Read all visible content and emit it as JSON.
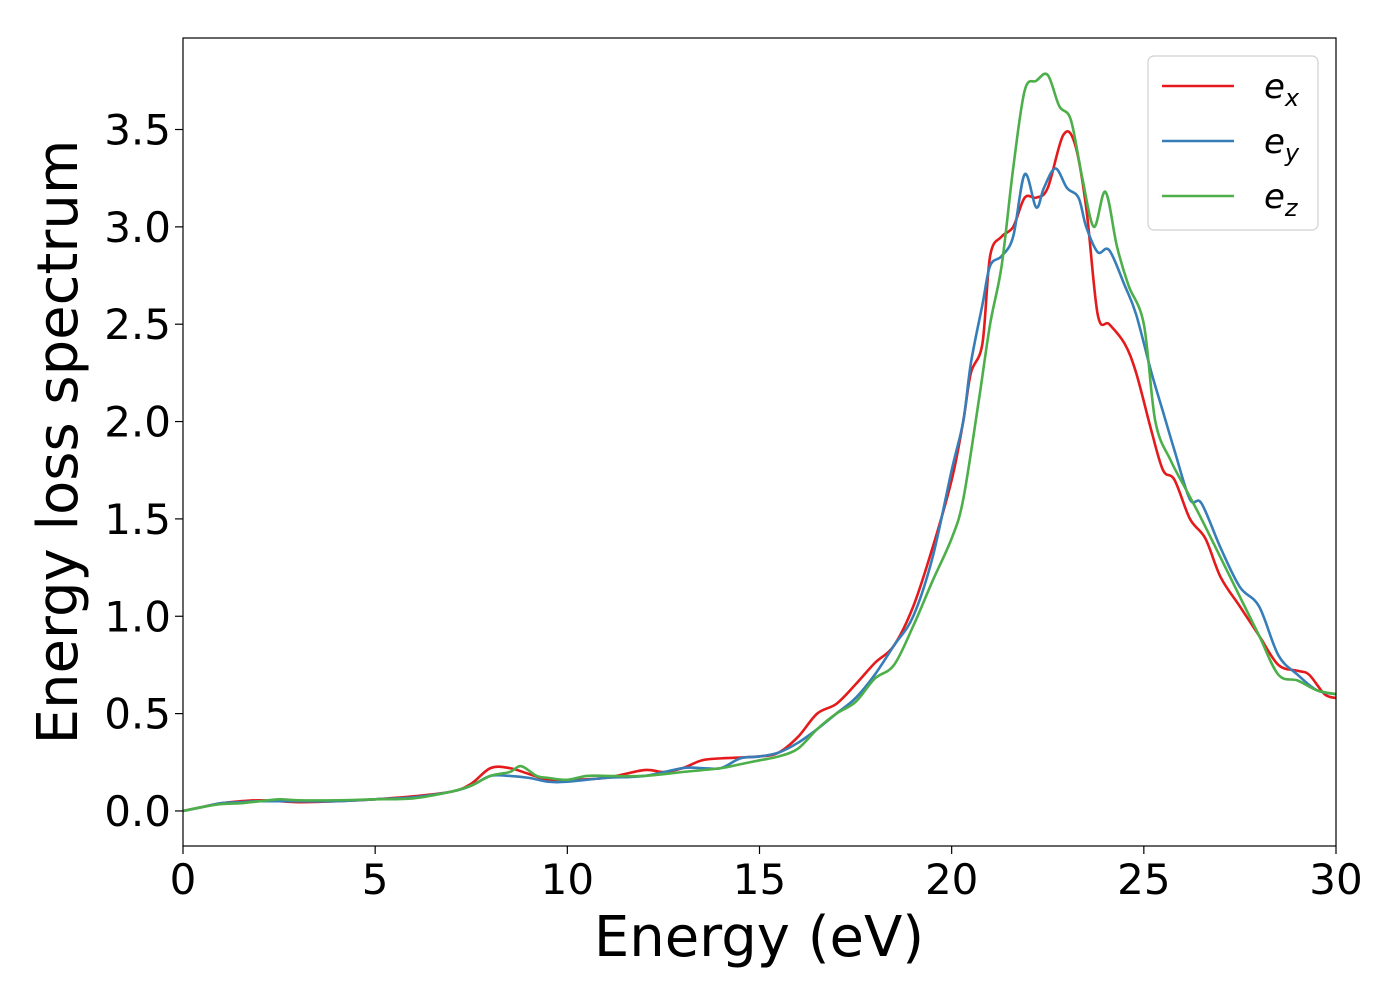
{
  "chart_data": {
    "type": "line",
    "xlabel": "Energy (eV)",
    "ylabel": "Energy loss spectrum",
    "xlim": [
      0,
      30
    ],
    "ylim": [
      -0.18,
      3.97
    ],
    "grid": false,
    "legend_position": "top-right",
    "x_ticks": [
      0,
      5,
      10,
      15,
      20,
      25,
      30
    ],
    "x_tick_labels": [
      "0",
      "5",
      "10",
      "15",
      "20",
      "25",
      "30"
    ],
    "y_ticks": [
      0.0,
      0.5,
      1.0,
      1.5,
      2.0,
      2.5,
      3.0,
      3.5
    ],
    "y_tick_labels": [
      "0.0",
      "0.5",
      "1.0",
      "1.5",
      "2.0",
      "2.5",
      "3.0",
      "3.5"
    ],
    "series": [
      {
        "name": "e",
        "subscript": "x",
        "color": "#e41a1c",
        "points": [
          [
            0,
            0.0
          ],
          [
            0.5,
            0.02
          ],
          [
            1,
            0.04
          ],
          [
            1.5,
            0.05
          ],
          [
            2,
            0.055
          ],
          [
            2.5,
            0.05
          ],
          [
            3,
            0.045
          ],
          [
            4,
            0.05
          ],
          [
            5,
            0.06
          ],
          [
            6,
            0.075
          ],
          [
            7,
            0.1
          ],
          [
            7.5,
            0.14
          ],
          [
            8,
            0.22
          ],
          [
            8.5,
            0.22
          ],
          [
            9,
            0.19
          ],
          [
            9.5,
            0.16
          ],
          [
            10,
            0.16
          ],
          [
            11,
            0.17
          ],
          [
            12,
            0.21
          ],
          [
            12.5,
            0.2
          ],
          [
            13,
            0.22
          ],
          [
            13.5,
            0.26
          ],
          [
            14,
            0.27
          ],
          [
            15,
            0.28
          ],
          [
            15.5,
            0.3
          ],
          [
            16,
            0.38
          ],
          [
            16.5,
            0.5
          ],
          [
            17,
            0.55
          ],
          [
            17.5,
            0.65
          ],
          [
            18,
            0.76
          ],
          [
            18.5,
            0.85
          ],
          [
            19,
            1.05
          ],
          [
            19.5,
            1.35
          ],
          [
            20,
            1.7
          ],
          [
            20.3,
            2.0
          ],
          [
            20.5,
            2.25
          ],
          [
            20.8,
            2.4
          ],
          [
            21,
            2.85
          ],
          [
            21.3,
            2.95
          ],
          [
            21.6,
            3.0
          ],
          [
            21.9,
            3.15
          ],
          [
            22.2,
            3.15
          ],
          [
            22.5,
            3.2
          ],
          [
            22.9,
            3.47
          ],
          [
            23.2,
            3.43
          ],
          [
            23.5,
            3.1
          ],
          [
            23.8,
            2.55
          ],
          [
            24.1,
            2.5
          ],
          [
            24.5,
            2.4
          ],
          [
            24.8,
            2.25
          ],
          [
            25.2,
            1.95
          ],
          [
            25.5,
            1.75
          ],
          [
            25.8,
            1.7
          ],
          [
            26.2,
            1.5
          ],
          [
            26.6,
            1.4
          ],
          [
            27,
            1.2
          ],
          [
            27.5,
            1.05
          ],
          [
            28,
            0.9
          ],
          [
            28.5,
            0.75
          ],
          [
            29,
            0.72
          ],
          [
            29.3,
            0.7
          ],
          [
            29.7,
            0.6
          ],
          [
            30,
            0.58
          ]
        ]
      },
      {
        "name": "e",
        "subscript": "y",
        "color": "#377eb8",
        "points": [
          [
            0,
            0.0
          ],
          [
            0.5,
            0.02
          ],
          [
            1,
            0.04
          ],
          [
            1.5,
            0.045
          ],
          [
            2,
            0.05
          ],
          [
            3,
            0.05
          ],
          [
            4,
            0.05
          ],
          [
            5,
            0.06
          ],
          [
            6,
            0.07
          ],
          [
            7,
            0.1
          ],
          [
            7.5,
            0.13
          ],
          [
            8,
            0.18
          ],
          [
            8.5,
            0.18
          ],
          [
            9,
            0.17
          ],
          [
            9.5,
            0.15
          ],
          [
            10,
            0.15
          ],
          [
            11,
            0.17
          ],
          [
            12,
            0.18
          ],
          [
            13,
            0.22
          ],
          [
            13.5,
            0.22
          ],
          [
            14,
            0.22
          ],
          [
            14.5,
            0.27
          ],
          [
            15,
            0.28
          ],
          [
            15.5,
            0.3
          ],
          [
            16,
            0.35
          ],
          [
            16.5,
            0.42
          ],
          [
            17,
            0.5
          ],
          [
            17.5,
            0.58
          ],
          [
            18,
            0.7
          ],
          [
            18.5,
            0.85
          ],
          [
            19,
            1.0
          ],
          [
            19.5,
            1.3
          ],
          [
            20,
            1.75
          ],
          [
            20.3,
            2.0
          ],
          [
            20.5,
            2.3
          ],
          [
            20.8,
            2.6
          ],
          [
            21,
            2.8
          ],
          [
            21.3,
            2.85
          ],
          [
            21.6,
            2.95
          ],
          [
            21.9,
            3.27
          ],
          [
            22.2,
            3.1
          ],
          [
            22.4,
            3.2
          ],
          [
            22.7,
            3.3
          ],
          [
            23,
            3.2
          ],
          [
            23.3,
            3.15
          ],
          [
            23.5,
            3.0
          ],
          [
            23.8,
            2.87
          ],
          [
            24.1,
            2.88
          ],
          [
            24.5,
            2.7
          ],
          [
            24.8,
            2.55
          ],
          [
            25.2,
            2.25
          ],
          [
            25.5,
            2.05
          ],
          [
            25.8,
            1.85
          ],
          [
            26.2,
            1.6
          ],
          [
            26.5,
            1.58
          ],
          [
            27,
            1.35
          ],
          [
            27.5,
            1.15
          ],
          [
            28,
            1.05
          ],
          [
            28.5,
            0.8
          ],
          [
            29,
            0.7
          ],
          [
            29.5,
            0.62
          ],
          [
            30,
            0.6
          ]
        ]
      },
      {
        "name": "e",
        "subscript": "z",
        "color": "#4daf4a",
        "points": [
          [
            0,
            0.0
          ],
          [
            0.5,
            0.02
          ],
          [
            1,
            0.035
          ],
          [
            1.5,
            0.04
          ],
          [
            2,
            0.05
          ],
          [
            2.5,
            0.06
          ],
          [
            3,
            0.055
          ],
          [
            4,
            0.055
          ],
          [
            5,
            0.06
          ],
          [
            6,
            0.065
          ],
          [
            7,
            0.1
          ],
          [
            7.5,
            0.13
          ],
          [
            8,
            0.18
          ],
          [
            8.5,
            0.2
          ],
          [
            8.8,
            0.23
          ],
          [
            9.2,
            0.18
          ],
          [
            9.5,
            0.17
          ],
          [
            10,
            0.16
          ],
          [
            10.5,
            0.18
          ],
          [
            11,
            0.18
          ],
          [
            12,
            0.18
          ],
          [
            13,
            0.2
          ],
          [
            14,
            0.22
          ],
          [
            14.5,
            0.24
          ],
          [
            15,
            0.26
          ],
          [
            15.5,
            0.28
          ],
          [
            16,
            0.32
          ],
          [
            16.5,
            0.42
          ],
          [
            17,
            0.5
          ],
          [
            17.5,
            0.56
          ],
          [
            18,
            0.68
          ],
          [
            18.5,
            0.75
          ],
          [
            19,
            0.95
          ],
          [
            19.5,
            1.18
          ],
          [
            20,
            1.4
          ],
          [
            20.3,
            1.6
          ],
          [
            20.7,
            2.1
          ],
          [
            21,
            2.5
          ],
          [
            21.3,
            2.8
          ],
          [
            21.6,
            3.3
          ],
          [
            21.9,
            3.7
          ],
          [
            22.2,
            3.75
          ],
          [
            22.5,
            3.78
          ],
          [
            22.8,
            3.62
          ],
          [
            23.1,
            3.55
          ],
          [
            23.4,
            3.25
          ],
          [
            23.7,
            3.0
          ],
          [
            24,
            3.18
          ],
          [
            24.3,
            2.9
          ],
          [
            24.6,
            2.7
          ],
          [
            25,
            2.5
          ],
          [
            25.3,
            2.0
          ],
          [
            25.7,
            1.8
          ],
          [
            26.1,
            1.65
          ],
          [
            26.5,
            1.5
          ],
          [
            27,
            1.3
          ],
          [
            27.5,
            1.1
          ],
          [
            28,
            0.9
          ],
          [
            28.5,
            0.7
          ],
          [
            29,
            0.67
          ],
          [
            29.5,
            0.62
          ],
          [
            30,
            0.6
          ]
        ]
      }
    ]
  }
}
